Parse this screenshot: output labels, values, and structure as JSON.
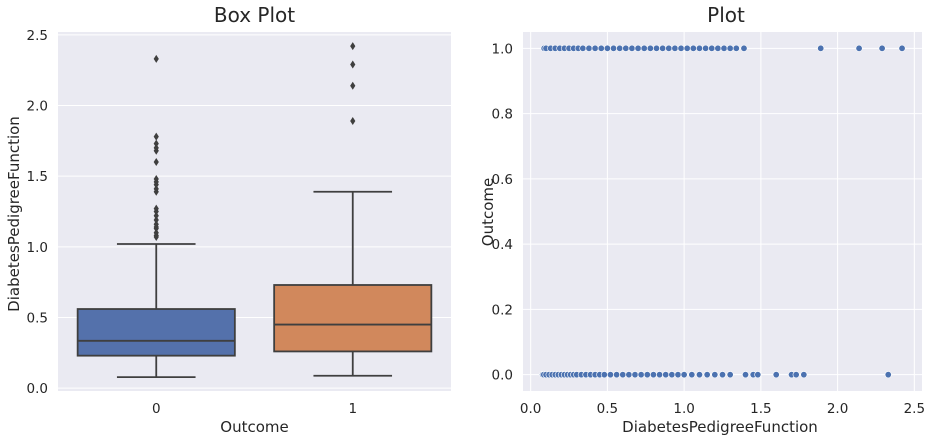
{
  "chart_data": [
    {
      "type": "box",
      "title": "Box Plot",
      "xlabel": "Outcome",
      "ylabel": "DiabetesPedigreeFunction",
      "categories": [
        "0",
        "1"
      ],
      "yticks": [
        "0.0",
        "0.5",
        "1.0",
        "1.5",
        "2.0",
        "2.5"
      ],
      "ylim": [
        -0.02,
        2.52
      ],
      "grid": true,
      "boxes": [
        {
          "category": "0",
          "color": "#5471ab",
          "whisker_low": 0.078,
          "q1": 0.23,
          "median": 0.335,
          "q3": 0.56,
          "whisker_high": 1.02,
          "outliers": [
            1.07,
            1.08,
            1.1,
            1.13,
            1.14,
            1.16,
            1.19,
            1.22,
            1.25,
            1.27,
            1.39,
            1.41,
            1.44,
            1.46,
            1.48,
            1.6,
            1.68,
            1.7,
            1.73,
            1.78,
            2.33
          ]
        },
        {
          "category": "1",
          "color": "#d1885c",
          "whisker_low": 0.088,
          "q1": 0.26,
          "median": 0.45,
          "q3": 0.73,
          "whisker_high": 1.39,
          "outliers": [
            1.89,
            2.14,
            2.29,
            2.42
          ]
        }
      ]
    },
    {
      "type": "scatter",
      "title": "Plot",
      "xlabel": "DiabetesPedigreeFunction",
      "ylabel": "Outcome",
      "xticks": [
        "0.0",
        "0.5",
        "1.0",
        "1.5",
        "2.0",
        "2.5"
      ],
      "yticks": [
        "0.0",
        "0.2",
        "0.4",
        "0.6",
        "0.8",
        "1.0"
      ],
      "xlim": [
        -0.05,
        2.55
      ],
      "ylim": [
        -0.05,
        1.05
      ],
      "grid": true,
      "color": "#4c72b0",
      "series": [
        {
          "y": 0,
          "x": [
            0.078,
            0.085,
            0.1,
            0.12,
            0.14,
            0.16,
            0.18,
            0.2,
            0.22,
            0.24,
            0.26,
            0.28,
            0.3,
            0.33,
            0.36,
            0.39,
            0.42,
            0.45,
            0.48,
            0.52,
            0.56,
            0.6,
            0.64,
            0.68,
            0.72,
            0.76,
            0.8,
            0.84,
            0.88,
            0.92,
            0.96,
            1.0,
            1.05,
            1.1,
            1.15,
            1.2,
            1.25,
            1.3,
            1.4,
            1.45,
            1.48,
            1.6,
            1.7,
            1.73,
            1.78,
            2.33
          ]
        },
        {
          "y": 1,
          "x": [
            0.088,
            0.1,
            0.13,
            0.16,
            0.19,
            0.22,
            0.25,
            0.28,
            0.31,
            0.34,
            0.38,
            0.42,
            0.46,
            0.5,
            0.54,
            0.58,
            0.62,
            0.66,
            0.7,
            0.74,
            0.78,
            0.82,
            0.86,
            0.9,
            0.94,
            0.98,
            1.02,
            1.06,
            1.1,
            1.14,
            1.18,
            1.22,
            1.26,
            1.3,
            1.34,
            1.39,
            1.89,
            2.14,
            2.29,
            2.42
          ]
        }
      ]
    }
  ]
}
